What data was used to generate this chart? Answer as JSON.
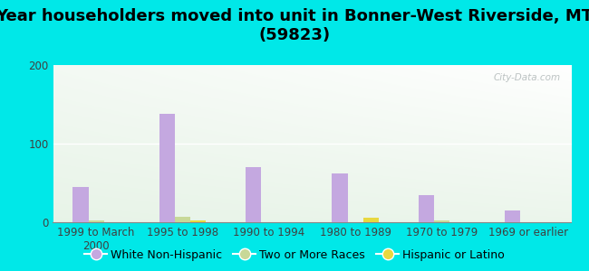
{
  "title": "Year householders moved into unit in Bonner-West Riverside, MT\n(59823)",
  "categories": [
    "1999 to March\n2000",
    "1995 to 1998",
    "1990 to 1994",
    "1980 to 1989",
    "1970 to 1979",
    "1969 or earlier"
  ],
  "white_non_hispanic": [
    45,
    138,
    70,
    62,
    35,
    15
  ],
  "two_or_more_races": [
    2,
    7,
    0,
    0,
    2,
    0
  ],
  "hispanic_or_latino": [
    0,
    2,
    0,
    6,
    0,
    0
  ],
  "bar_width": 0.18,
  "color_white": "#c4a8e0",
  "color_two_more": "#c8d898",
  "color_hispanic": "#e8d840",
  "background_outer": "#00e8e8",
  "ylim": [
    0,
    200
  ],
  "yticks": [
    0,
    100,
    200
  ],
  "title_fontsize": 13,
  "legend_fontsize": 9,
  "tick_fontsize": 8.5
}
